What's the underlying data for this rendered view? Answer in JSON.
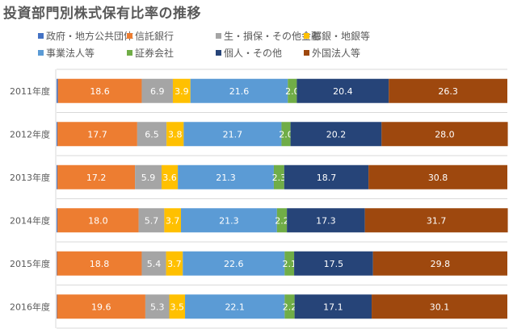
{
  "title": "投資部門別株式保有比率の推移",
  "chart_data": {
    "type": "bar",
    "orientation": "horizontal",
    "stacked": true,
    "title": "投資部門別株式保有比率の推移",
    "categories": [
      "2011年度",
      "2012年度",
      "2013年度",
      "2014年度",
      "2015年度",
      "2016年度"
    ],
    "xlim": [
      0,
      100
    ],
    "grid": "horizontal separators between categories",
    "legend_position": "top",
    "series": [
      {
        "name": "政府・地方公共団体",
        "color": "#4472C4",
        "values": [
          0.3,
          0.2,
          0.2,
          0.2,
          0.1,
          0.1
        ],
        "labels": false
      },
      {
        "name": "信託銀行",
        "color": "#ED7D31",
        "values": [
          18.6,
          17.7,
          17.2,
          18.0,
          18.8,
          19.6
        ]
      },
      {
        "name": "生・損保・その他金融",
        "color": "#A5A5A5",
        "values": [
          6.9,
          6.5,
          5.9,
          5.7,
          5.4,
          5.3
        ]
      },
      {
        "name": "都銀・地銀等",
        "color": "#FFC000",
        "values": [
          3.9,
          3.8,
          3.6,
          3.7,
          3.7,
          3.5
        ]
      },
      {
        "name": "事業法人等",
        "color": "#5B9BD5",
        "values": [
          21.6,
          21.7,
          21.3,
          21.3,
          22.6,
          22.1
        ]
      },
      {
        "name": "証券会社",
        "color": "#70AD47",
        "values": [
          2.0,
          2.0,
          2.3,
          2.2,
          2.1,
          2.2
        ]
      },
      {
        "name": "個人・その他",
        "color": "#264478",
        "values": [
          20.4,
          20.2,
          18.7,
          17.3,
          17.5,
          17.1
        ]
      },
      {
        "name": "外国法人等",
        "color": "#9E480E",
        "values": [
          26.3,
          28.0,
          30.8,
          31.7,
          29.8,
          30.1
        ]
      }
    ]
  }
}
